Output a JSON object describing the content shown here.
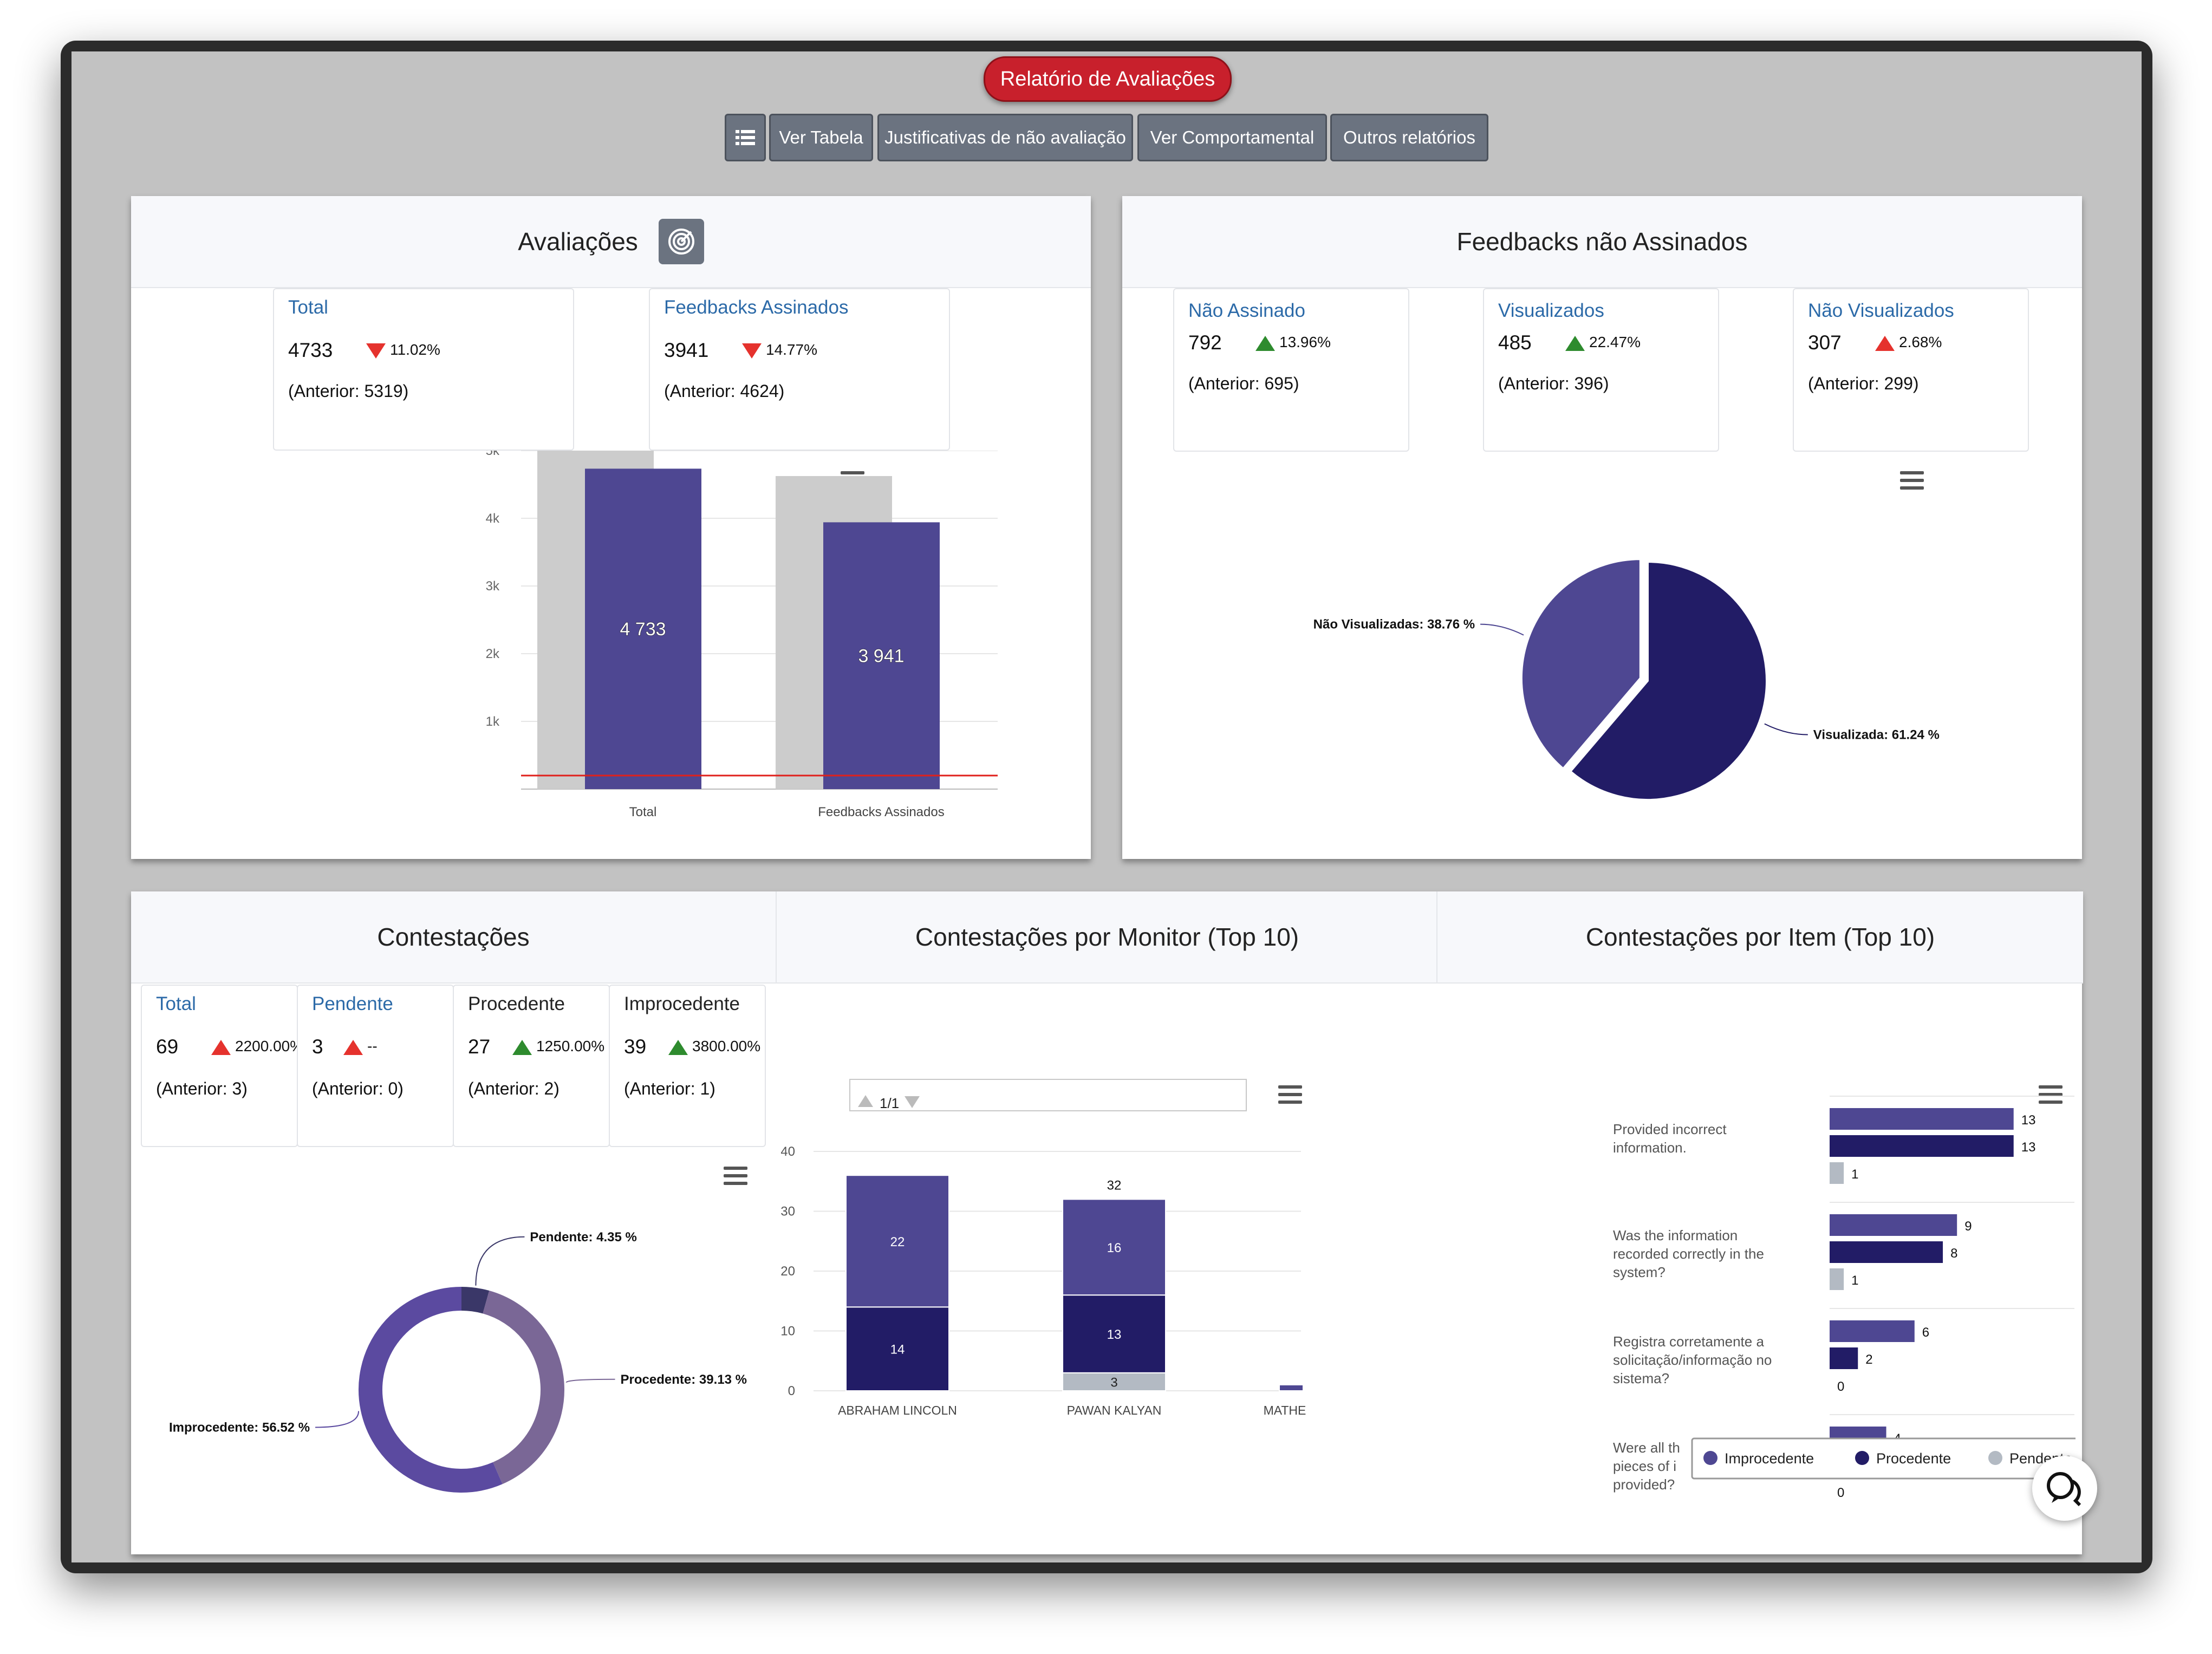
{
  "app": {
    "title": "Relatório de Avaliações"
  },
  "toolbar": {
    "ver_tabela": "Ver Tabela",
    "justificativas": "Justificativas de não avaliação",
    "ver_comportamental": "Ver Comportamental",
    "outros": "Outros relatórios",
    "list_icon": "list-icon"
  },
  "avaliacoes": {
    "title": "Avaliações",
    "cards": [
      {
        "label": "Total",
        "value": "4733",
        "pct": "11.02%",
        "anterior": "(Anterior: 5319)",
        "trend": "down"
      },
      {
        "label": "Feedbacks Assinados",
        "value": "3941",
        "pct": "14.77%",
        "anterior": "(Anterior: 4624)",
        "trend": "down"
      }
    ]
  },
  "feedbacks": {
    "title": "Feedbacks não Assinados",
    "cards": [
      {
        "label": "Não Assinado",
        "value": "792",
        "pct": "13.96%",
        "anterior": "(Anterior: 695)",
        "trend": "up"
      },
      {
        "label": "Visualizados",
        "value": "485",
        "pct": "22.47%",
        "anterior": "(Anterior: 396)",
        "trend": "up"
      },
      {
        "label": "Não Visualizados",
        "value": "307",
        "pct": "2.68%",
        "anterior": "(Anterior: 299)",
        "trend": "up-red"
      }
    ]
  },
  "contestacoes": {
    "title": "Contestações",
    "title_monitor": "Contestações por Monitor (Top 10)",
    "title_item": "Contestações por Item (Top 10)",
    "cards": [
      {
        "label": "Total",
        "value": "69",
        "pct": "2200.00%",
        "anterior": "(Anterior: 3)",
        "trend": "up-red",
        "label_style": "blue"
      },
      {
        "label": "Pendente",
        "value": "3",
        "pct": "--",
        "anterior": "(Anterior: 0)",
        "trend": "up-red",
        "label_style": "blue"
      },
      {
        "label": "Procedente",
        "value": "27",
        "pct": "1250.00%",
        "anterior": "(Anterior: 2)",
        "trend": "up",
        "label_style": "dark"
      },
      {
        "label": "Improcedente",
        "value": "39",
        "pct": "3800.00%",
        "anterior": "(Anterior: 1)",
        "trend": "up",
        "label_style": "dark"
      }
    ],
    "pager": "1/1"
  },
  "colors": {
    "accent": "#4e4792",
    "dark_navy": "#221c66",
    "previous_gray": "#cccccc",
    "pending_gray": "#b3bac3",
    "threshold_red": "#e0201b",
    "title_red": "#c8202c"
  },
  "chart_data": [
    {
      "type": "bar",
      "title": "",
      "categories": [
        "Total",
        "Feedbacks Assinados"
      ],
      "series": [
        {
          "values": [
            5319,
            4624
          ]
        },
        {
          "values": [
            4733,
            3941
          ]
        }
      ],
      "data_labels": [
        "4 733",
        "3 941"
      ],
      "ylim": [
        0,
        5000
      ],
      "y_ticks": [
        "1k",
        "2k",
        "3k",
        "4k",
        "5k"
      ],
      "threshold_line": 200
    },
    {
      "type": "pie",
      "slices": [
        {
          "label": "Visualizada: 61.24 %",
          "value": 61.24
        },
        {
          "label": "Não Visualizadas: 38.76 %",
          "value": 38.76
        }
      ]
    },
    {
      "type": "pie",
      "donut": true,
      "slices": [
        {
          "label": "Pendente: 4.35 %",
          "value": 4.35
        },
        {
          "label": "Procedente: 39.13 %",
          "value": 39.13
        },
        {
          "label": "Improcedente: 56.52 %",
          "value": 56.52
        }
      ]
    },
    {
      "type": "bar",
      "stacked": true,
      "categories": [
        "ABRAHAM LINCOLN",
        "PAWAN KALYAN",
        "MATHE"
      ],
      "series": [
        {
          "name": "Improcedente",
          "values": [
            22,
            16,
            1
          ]
        },
        {
          "name": "Procedente",
          "values": [
            14,
            13,
            0
          ]
        },
        {
          "name": "Pendente",
          "values": [
            0,
            3,
            0
          ]
        }
      ],
      "totals": [
        "",
        "32",
        ""
      ],
      "ylim": [
        0,
        40
      ],
      "y_ticks": [
        "0",
        "10",
        "20",
        "30",
        "40"
      ]
    },
    {
      "type": "bar",
      "orientation": "horizontal",
      "categories": [
        [
          "Provided incorrect",
          "information."
        ],
        [
          "Was the information",
          "recorded correctly in the",
          "system?"
        ],
        [
          "Registra corretamente a",
          "solicitação/informação no",
          "sistema?"
        ],
        [
          "Were all th",
          "pieces of i",
          "provided?"
        ]
      ],
      "series": [
        {
          "name": "Improcedente",
          "values": [
            13,
            9,
            6,
            4
          ]
        },
        {
          "name": "Procedente",
          "values": [
            13,
            8,
            2,
            0
          ]
        },
        {
          "name": "Pendente",
          "values": [
            1,
            1,
            0,
            0
          ]
        }
      ],
      "xlim": [
        0,
        15
      ],
      "x_ticks": [
        "0",
        "5",
        "10",
        "15"
      ],
      "legend": [
        "Improcedente",
        "Procedente",
        "Pendente"
      ]
    }
  ]
}
